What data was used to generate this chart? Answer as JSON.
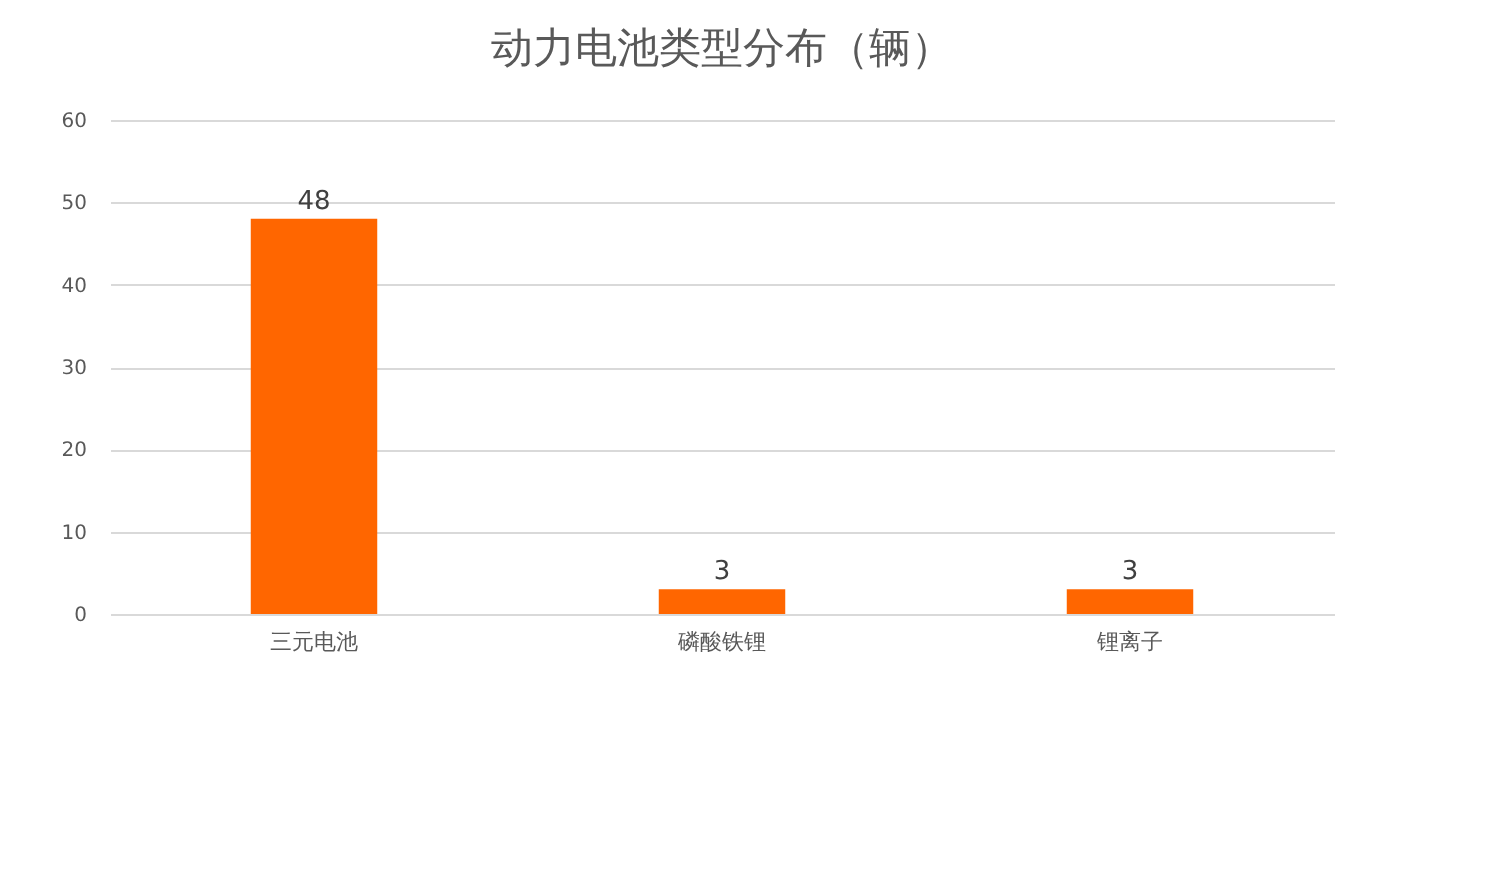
{
  "chart_data": {
    "type": "bar",
    "title": "动力电池类型分布（辆）",
    "categories": [
      "三元电池",
      "磷酸铁锂",
      "锂离子"
    ],
    "values": [
      48,
      3,
      3
    ],
    "color": "#ff6600",
    "ylim": [
      0,
      60
    ],
    "yticks": [
      0,
      10,
      20,
      30,
      40,
      50,
      60
    ],
    "grid": "y",
    "data_labels": true
  }
}
